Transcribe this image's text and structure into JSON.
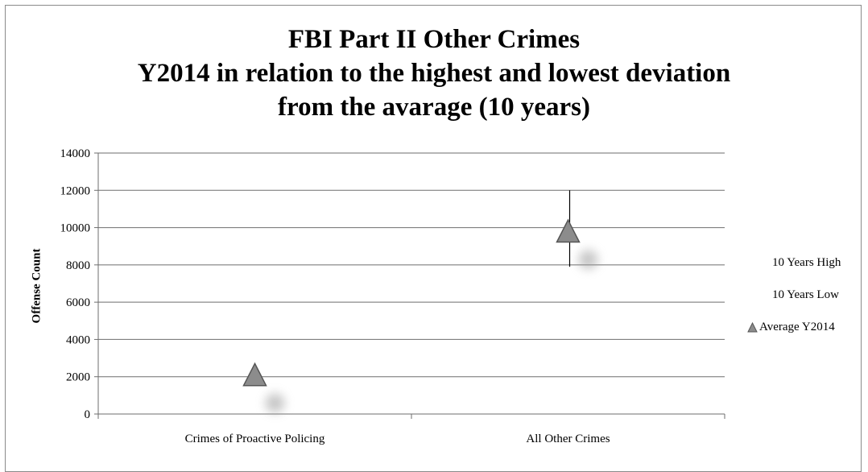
{
  "chart_data": {
    "type": "stock",
    "title_lines": [
      "FBI Part II Other Crimes",
      "Y2014 in relation to the highest and lowest deviation",
      "from the avarage (10 years)"
    ],
    "xlabel": "",
    "ylabel": "Offense Count",
    "ylim": [
      0,
      14000
    ],
    "yticks": [
      0,
      2000,
      4000,
      6000,
      8000,
      10000,
      12000,
      14000
    ],
    "categories": [
      "Crimes of Proactive Policing",
      "All Other Crimes"
    ],
    "series": [
      {
        "name": "10 Years High",
        "values": [
          2200,
          12000
        ]
      },
      {
        "name": "10 Years Low",
        "values": [
          2100,
          7900
        ]
      },
      {
        "name": "Average Y2014",
        "values": [
          2100,
          9800
        ],
        "marker": "triangle"
      }
    ],
    "grid": true,
    "legend_position": "right",
    "colors": {
      "marker": "#8c8c8c",
      "marker_stroke": "#555555",
      "grid": "#6e6e6e"
    }
  }
}
